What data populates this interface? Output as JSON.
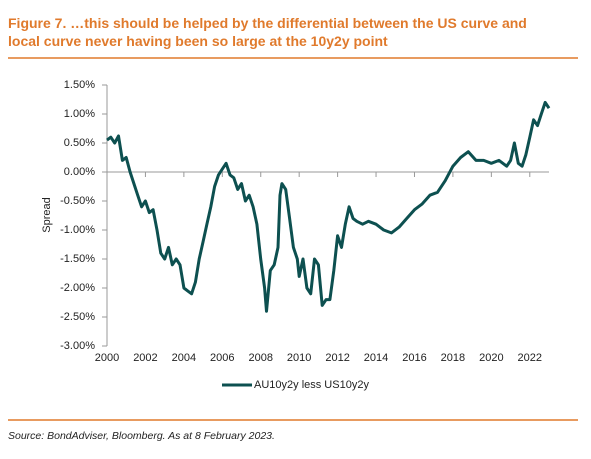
{
  "chart_data": {
    "type": "line",
    "title": "Figure 7. …this should be helped by the differential between the US curve and",
    "subtitle": "local curve never having been so large at the 10y2y point",
    "y_label": "Spread",
    "source": "Source: BondAdviser, Bloomberg. As at 8 February 2023.",
    "x": [
      2000.0,
      2000.2,
      2000.4,
      2000.6,
      2000.8,
      2001.0,
      2001.2,
      2001.4,
      2001.6,
      2001.8,
      2002.0,
      2002.2,
      2002.4,
      2002.6,
      2002.8,
      2003.0,
      2003.2,
      2003.4,
      2003.6,
      2003.8,
      2004.0,
      2004.2,
      2004.4,
      2004.6,
      2004.8,
      2005.0,
      2005.2,
      2005.4,
      2005.6,
      2005.8,
      2006.0,
      2006.2,
      2006.4,
      2006.6,
      2006.8,
      2007.0,
      2007.2,
      2007.4,
      2007.6,
      2007.8,
      2008.0,
      2008.2,
      2008.3,
      2008.5,
      2008.7,
      2008.9,
      2009.0,
      2009.1,
      2009.3,
      2009.5,
      2009.7,
      2009.9,
      2010.0,
      2010.2,
      2010.4,
      2010.6,
      2010.8,
      2011.0,
      2011.2,
      2011.4,
      2011.6,
      2011.8,
      2012.0,
      2012.2,
      2012.4,
      2012.6,
      2012.8,
      2013.0,
      2013.3,
      2013.6,
      2014.0,
      2014.4,
      2014.8,
      2015.2,
      2015.6,
      2016.0,
      2016.4,
      2016.8,
      2017.2,
      2017.6,
      2018.0,
      2018.4,
      2018.8,
      2019.2,
      2019.6,
      2020.0,
      2020.4,
      2020.8,
      2021.0,
      2021.2,
      2021.4,
      2021.6,
      2021.8,
      2022.0,
      2022.2,
      2022.4,
      2022.6,
      2022.8,
      2023.0
    ],
    "series": [
      {
        "name": "AU10y2y less US10y2y",
        "color": "#0d5050",
        "values": [
          0.55,
          0.6,
          0.5,
          0.62,
          0.2,
          0.25,
          0.0,
          -0.2,
          -0.4,
          -0.6,
          -0.5,
          -0.7,
          -0.65,
          -1.0,
          -1.4,
          -1.5,
          -1.3,
          -1.6,
          -1.5,
          -1.6,
          -2.0,
          -2.05,
          -2.1,
          -1.9,
          -1.5,
          -1.2,
          -0.9,
          -0.6,
          -0.25,
          -0.05,
          0.05,
          0.15,
          -0.05,
          -0.1,
          -0.3,
          -0.2,
          -0.5,
          -0.4,
          -0.6,
          -0.9,
          -1.5,
          -2.0,
          -2.4,
          -1.7,
          -1.6,
          -1.3,
          -0.4,
          -0.2,
          -0.3,
          -0.8,
          -1.3,
          -1.5,
          -1.8,
          -1.5,
          -2.0,
          -2.1,
          -1.5,
          -1.6,
          -2.3,
          -2.2,
          -2.2,
          -1.7,
          -1.1,
          -1.3,
          -0.9,
          -0.6,
          -0.8,
          -0.85,
          -0.9,
          -0.85,
          -0.9,
          -1.0,
          -1.05,
          -0.95,
          -0.8,
          -0.65,
          -0.55,
          -0.4,
          -0.35,
          -0.15,
          0.1,
          0.25,
          0.35,
          0.2,
          0.2,
          0.15,
          0.2,
          0.1,
          0.2,
          0.5,
          0.15,
          0.1,
          0.3,
          0.6,
          0.9,
          0.8,
          1.0,
          1.2,
          1.1
        ]
      }
    ],
    "xlim": [
      2000,
      2023
    ],
    "xticks": [
      2000,
      2002,
      2004,
      2006,
      2008,
      2010,
      2012,
      2014,
      2016,
      2018,
      2020,
      2022
    ],
    "ylim": [
      -3,
      1.5
    ],
    "yticks": [
      {
        "value": 1.5,
        "label": "1.50%"
      },
      {
        "value": 1.0,
        "label": "1.00%"
      },
      {
        "value": 0.5,
        "label": "0.50%"
      },
      {
        "value": 0,
        "label": "0.00%"
      },
      {
        "value": -0.5,
        "label": "-0.50%"
      },
      {
        "value": -1.0,
        "label": "-1.00%"
      },
      {
        "value": -1.5,
        "label": "-1.50%"
      },
      {
        "value": -2.0,
        "label": "-2.00%"
      },
      {
        "value": -2.5,
        "label": "-2.50%"
      },
      {
        "value": -3.0,
        "label": "-3.00%"
      }
    ],
    "legend": "bottom"
  }
}
